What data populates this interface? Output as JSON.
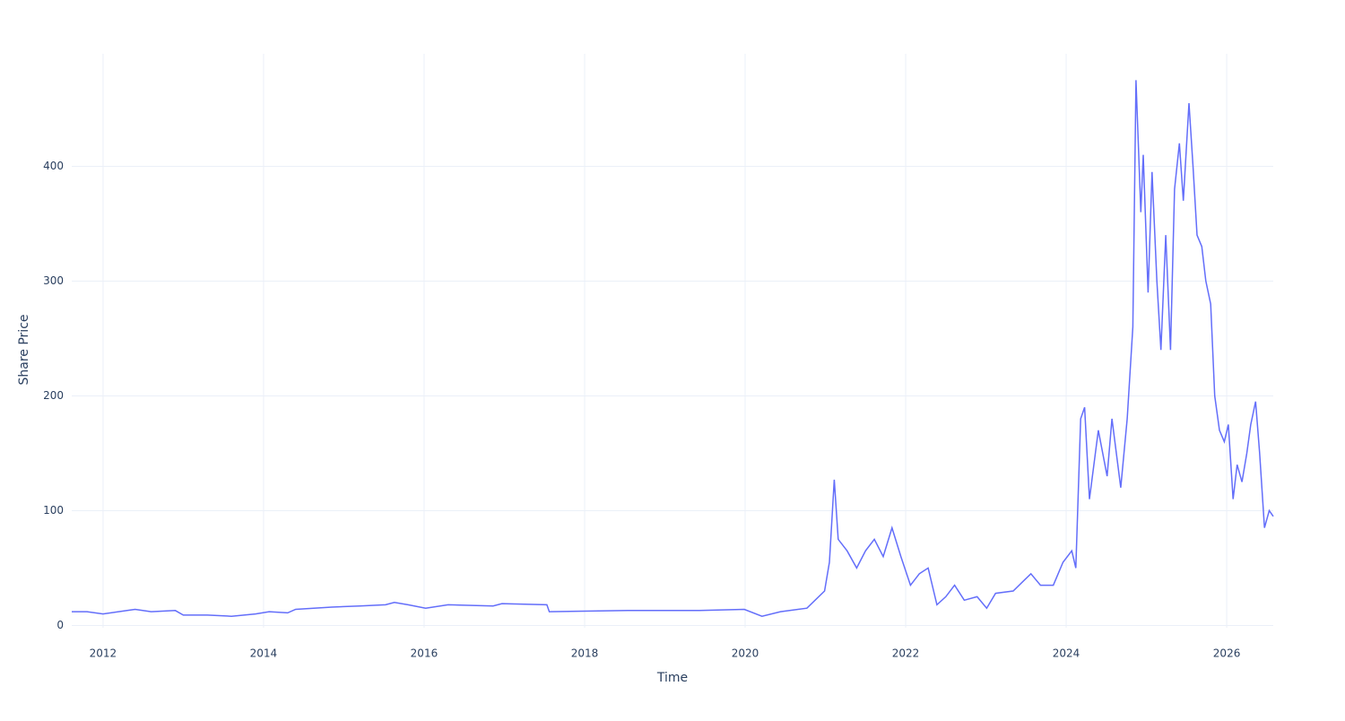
{
  "chart_data": {
    "type": "line",
    "x_label": "Time",
    "y_label": "Share Price",
    "x": [
      2011.61,
      2011.8,
      2012.0,
      2012.3,
      2012.4,
      2012.6,
      2012.9,
      2013.0,
      2013.3,
      2013.6,
      2013.9,
      2014.07,
      2014.3,
      2014.4,
      2014.85,
      2015.2,
      2015.52,
      2015.63,
      2015.8,
      2016.02,
      2016.3,
      2016.86,
      2016.97,
      2017.53,
      2017.56,
      2018.54,
      2019.43,
      2019.99,
      2020.21,
      2020.44,
      2020.77,
      2020.99,
      2021.05,
      2021.11,
      2021.16,
      2021.27,
      2021.39,
      2021.5,
      2021.61,
      2021.72,
      2021.83,
      2021.94,
      2022.06,
      2022.17,
      2022.28,
      2022.39,
      2022.5,
      2022.61,
      2022.73,
      2022.89,
      2023.01,
      2023.12,
      2023.34,
      2023.56,
      2023.68,
      2023.84,
      2023.96,
      2024.07,
      2024.12,
      2024.18,
      2024.23,
      2024.29,
      2024.4,
      2024.51,
      2024.57,
      2024.68,
      2024.76,
      2024.83,
      2024.87,
      2024.93,
      2024.96,
      2025.02,
      2025.07,
      2025.13,
      2025.18,
      2025.24,
      2025.3,
      2025.35,
      2025.41,
      2025.46,
      2025.53,
      2025.58,
      2025.63,
      2025.69,
      2025.74,
      2025.8,
      2025.85,
      2025.91,
      2025.97,
      2026.02,
      2026.08,
      2026.13,
      2026.19,
      2026.25,
      2026.3,
      2026.36,
      2026.41,
      2026.47,
      2026.53,
      2026.58
    ],
    "series": [
      {
        "name": "Share Price",
        "color": "#636efa",
        "values": [
          12,
          12,
          10,
          13,
          14,
          12,
          13,
          9,
          9,
          8,
          10,
          12,
          11,
          14,
          16,
          17,
          18,
          20,
          18,
          15,
          18,
          17,
          19,
          18,
          12,
          13,
          13,
          14,
          8,
          12,
          15,
          30,
          55,
          127,
          75,
          65,
          50,
          65,
          75,
          60,
          85,
          60,
          35,
          45,
          50,
          18,
          25,
          35,
          22,
          25,
          15,
          28,
          30,
          45,
          35,
          35,
          55,
          65,
          50,
          180,
          190,
          110,
          170,
          130,
          180,
          120,
          180,
          260,
          475,
          360,
          410,
          290,
          395,
          300,
          240,
          340,
          240,
          380,
          420,
          370,
          455,
          400,
          340,
          330,
          300,
          280,
          200,
          170,
          160,
          175,
          110,
          140,
          125,
          150,
          175,
          195,
          150,
          85,
          100,
          95
        ]
      }
    ],
    "xlim": [
      2011.61,
      2026.58
    ],
    "ylim": [
      -2,
      498
    ],
    "xticks": [
      2012,
      2014,
      2016,
      2018,
      2020,
      2022,
      2024,
      2026
    ],
    "yticks": [
      0,
      100,
      200,
      300,
      400
    ],
    "grid": true
  }
}
